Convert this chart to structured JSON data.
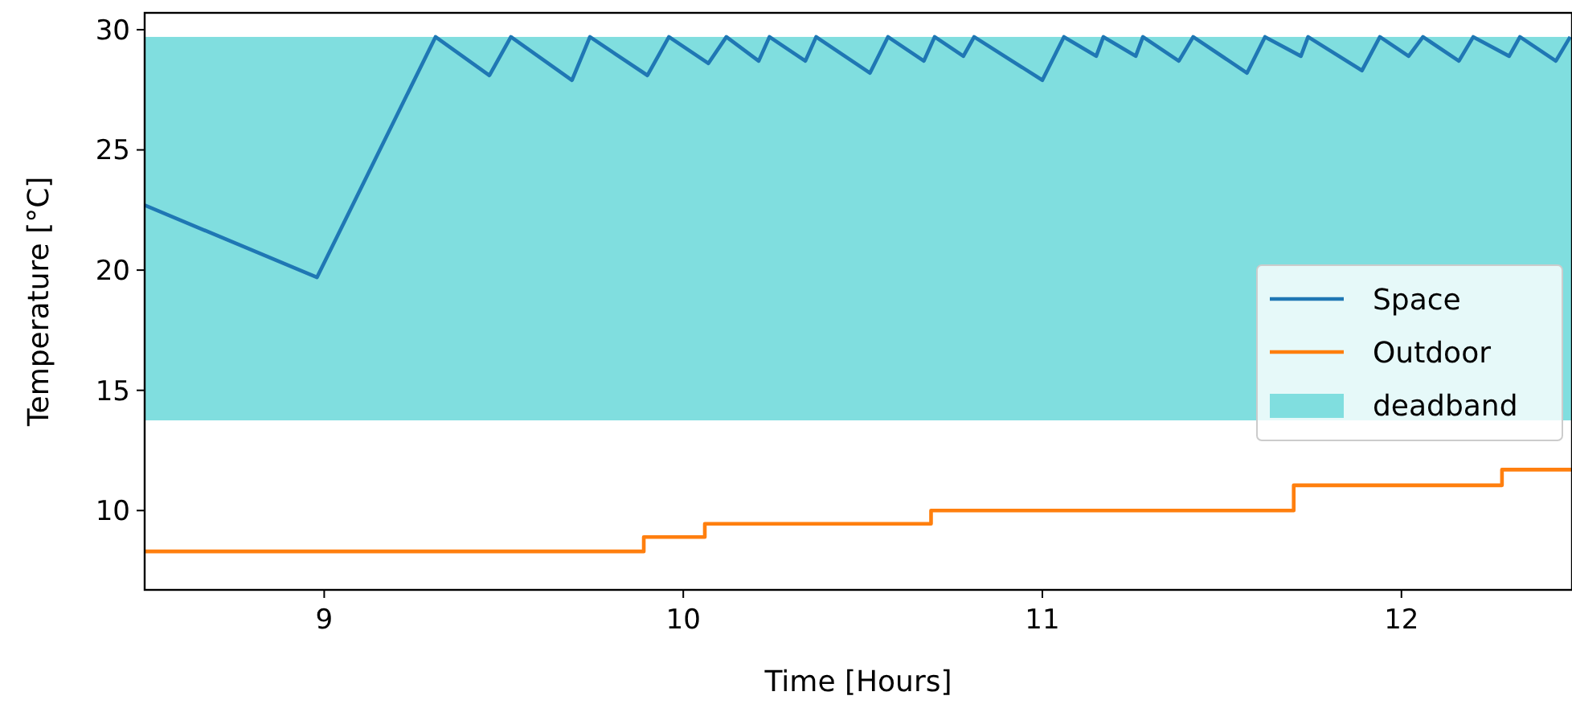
{
  "chart_data": {
    "type": "line",
    "xlabel": "Time [Hours]",
    "ylabel": "Temperature [°C]",
    "xlim": [
      8.5,
      12.475
    ],
    "ylim": [
      6.7,
      30.7
    ],
    "xticks": [
      9,
      10,
      11,
      12
    ],
    "yticks": [
      10,
      15,
      20,
      25,
      30
    ],
    "grid": false,
    "legend": "right",
    "series": [
      {
        "name": "Space",
        "color": "#1f77b4",
        "x": [
          8.5,
          8.98,
          9.31,
          9.46,
          9.52,
          9.69,
          9.74,
          9.9,
          9.96,
          10.07,
          10.12,
          10.21,
          10.24,
          10.34,
          10.37,
          10.52,
          10.57,
          10.67,
          10.7,
          10.78,
          10.81,
          11.0,
          11.06,
          11.15,
          11.17,
          11.26,
          11.28,
          11.38,
          11.42,
          11.57,
          11.62,
          11.72,
          11.74,
          11.89,
          11.94,
          12.02,
          12.06,
          12.16,
          12.2,
          12.3,
          12.33,
          12.43,
          12.47
        ],
        "values": [
          22.7,
          19.7,
          29.7,
          28.1,
          29.7,
          27.9,
          29.7,
          28.1,
          29.7,
          28.6,
          29.7,
          28.7,
          29.7,
          28.7,
          29.7,
          28.2,
          29.7,
          28.7,
          29.7,
          28.9,
          29.7,
          27.9,
          29.7,
          28.9,
          29.7,
          28.9,
          29.7,
          28.7,
          29.7,
          28.2,
          29.7,
          28.9,
          29.7,
          28.3,
          29.7,
          28.9,
          29.7,
          28.7,
          29.7,
          28.9,
          29.7,
          28.7,
          29.7
        ]
      },
      {
        "name": "Outdoor",
        "type": "step",
        "color": "#ff7f0e",
        "x": [
          8.5,
          9.89,
          10.06,
          10.69,
          11.7,
          12.28,
          12.475
        ],
        "values": [
          8.3,
          8.9,
          9.45,
          10.0,
          11.05,
          11.7,
          11.7
        ]
      }
    ],
    "bands": [
      {
        "axis": "y",
        "from": 13.75,
        "to": 29.7,
        "label": "deadband",
        "color": "#80dedf"
      }
    ]
  }
}
